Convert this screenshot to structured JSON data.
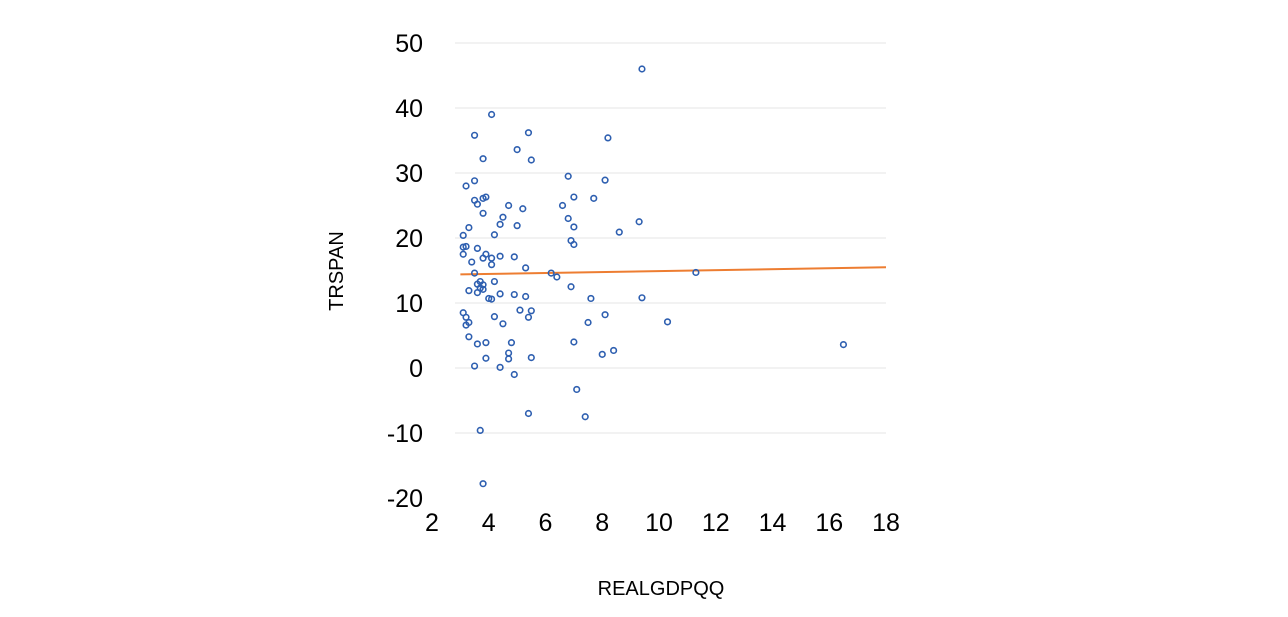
{
  "chart_data": {
    "type": "scatter",
    "title": "",
    "xlabel": "REALGDPQQ",
    "ylabel": "TRSPAN",
    "xlim": [
      2,
      18
    ],
    "ylim": [
      -20,
      50
    ],
    "xticks": [
      "2",
      "4",
      "6",
      "8",
      "10",
      "12",
      "14",
      "16",
      "18"
    ],
    "yticks": [
      "50",
      "40",
      "30",
      "20",
      "10",
      "0",
      "-10",
      "-20"
    ],
    "grid": "horizontal",
    "legend": "none",
    "colors": {
      "points": "#2e5fb0",
      "trend": "#ed7d31",
      "grid": "#e6e6e6"
    },
    "series": [
      {
        "points": [
          [
            9.4,
            46
          ],
          [
            4.1,
            39
          ],
          [
            5.4,
            36.2
          ],
          [
            3.5,
            35.8
          ],
          [
            8.2,
            35.4
          ],
          [
            5,
            33.6
          ],
          [
            3.8,
            32.2
          ],
          [
            5.5,
            32
          ],
          [
            6.8,
            29.5
          ],
          [
            3.5,
            28.8
          ],
          [
            8.1,
            28.9
          ],
          [
            3.2,
            28
          ],
          [
            3.9,
            26.3
          ],
          [
            3.8,
            26.1
          ],
          [
            7,
            26.3
          ],
          [
            7.7,
            26.1
          ],
          [
            3.5,
            25.8
          ],
          [
            3.6,
            25.2
          ],
          [
            4.7,
            25
          ],
          [
            6.6,
            25
          ],
          [
            5.2,
            24.5
          ],
          [
            3.8,
            23.8
          ],
          [
            4.5,
            23.2
          ],
          [
            6.8,
            23
          ],
          [
            4.4,
            22.1
          ],
          [
            9.3,
            22.5
          ],
          [
            3.3,
            21.6
          ],
          [
            5,
            21.9
          ],
          [
            7,
            21.7
          ],
          [
            8.6,
            20.9
          ],
          [
            3.1,
            20.4
          ],
          [
            4.2,
            20.5
          ],
          [
            6.9,
            19.6
          ],
          [
            7,
            19
          ],
          [
            3.2,
            18.7
          ],
          [
            3.1,
            18.6
          ],
          [
            3.6,
            18.4
          ],
          [
            3.1,
            17.5
          ],
          [
            3.9,
            17.5
          ],
          [
            4.4,
            17.2
          ],
          [
            4.9,
            17.1
          ],
          [
            3.8,
            16.9
          ],
          [
            4.1,
            16.9
          ],
          [
            3.4,
            16.3
          ],
          [
            4.1,
            15.9
          ],
          [
            5.3,
            15.4
          ],
          [
            3.5,
            14.6
          ],
          [
            6.2,
            14.6
          ],
          [
            6.4,
            14
          ],
          [
            11.3,
            14.7
          ],
          [
            3.7,
            13.3
          ],
          [
            4.2,
            13.3
          ],
          [
            3.6,
            12.9
          ],
          [
            3.8,
            12.8
          ],
          [
            3.7,
            12.3
          ],
          [
            3.8,
            12.1
          ],
          [
            6.9,
            12.5
          ],
          [
            3.3,
            11.9
          ],
          [
            3.6,
            11.6
          ],
          [
            4.4,
            11.4
          ],
          [
            4.9,
            11.3
          ],
          [
            5.3,
            11
          ],
          [
            7.6,
            10.7
          ],
          [
            9.4,
            10.8
          ],
          [
            4,
            10.7
          ],
          [
            4.1,
            10.6
          ],
          [
            5.1,
            8.9
          ],
          [
            5.5,
            8.8
          ],
          [
            3.1,
            8.5
          ],
          [
            3.2,
            7.8
          ],
          [
            4.2,
            7.9
          ],
          [
            5.4,
            7.8
          ],
          [
            8.1,
            8.2
          ],
          [
            3.3,
            7
          ],
          [
            3.2,
            6.6
          ],
          [
            4.5,
            6.8
          ],
          [
            7.5,
            7
          ],
          [
            10.3,
            7.1
          ],
          [
            3.3,
            4.8
          ],
          [
            3.6,
            3.7
          ],
          [
            3.9,
            3.9
          ],
          [
            4.8,
            3.9
          ],
          [
            7,
            4
          ],
          [
            16.5,
            3.6
          ],
          [
            4.7,
            2.3
          ],
          [
            8.4,
            2.7
          ],
          [
            8,
            2.1
          ],
          [
            3.9,
            1.5
          ],
          [
            4.7,
            1.4
          ],
          [
            5.5,
            1.6
          ],
          [
            3.5,
            0.3
          ],
          [
            4.4,
            0.1
          ],
          [
            4.9,
            -1
          ],
          [
            7.1,
            -3.3
          ],
          [
            5.4,
            -7
          ],
          [
            7.4,
            -7.5
          ],
          [
            3.7,
            -9.6
          ],
          [
            3.8,
            -17.8
          ]
        ]
      }
    ],
    "trendline": {
      "x": [
        3,
        18
      ],
      "y": [
        14.4,
        15.5
      ]
    }
  }
}
